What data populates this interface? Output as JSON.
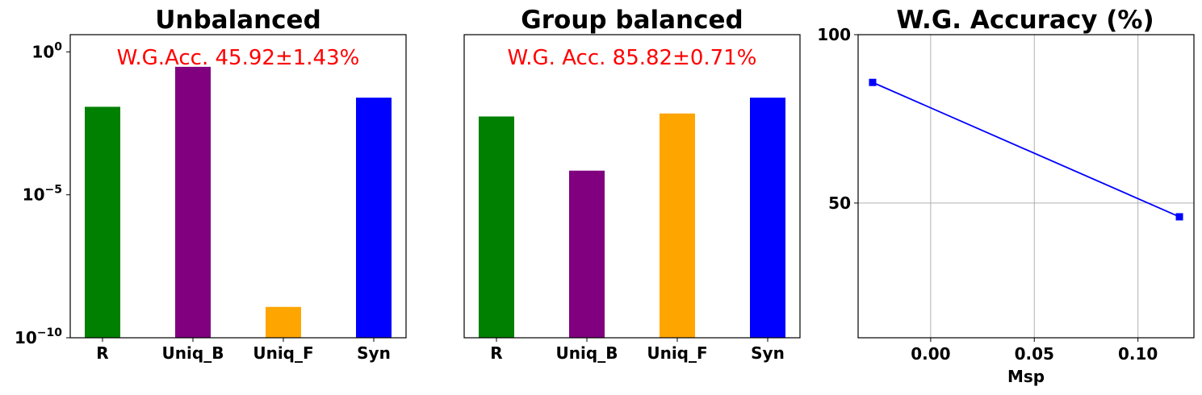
{
  "chart_data": [
    {
      "type": "bar",
      "title": "Unbalanced",
      "annotation": "W.G.Acc. 45.92±1.43%",
      "annotation_color": "#ff0000",
      "categories": [
        "R",
        "Uniq_B",
        "Uniq_F",
        "Syn"
      ],
      "values": [
        0.012,
        0.3,
        1.2e-09,
        0.025
      ],
      "colors": [
        "#008000",
        "#800080",
        "#ffa500",
        "#0000ff"
      ],
      "yscale": "log",
      "ylim": [
        1e-10,
        4
      ],
      "yticks": [
        {
          "value": 1,
          "base": "10",
          "exp": "0"
        },
        {
          "value": 1e-05,
          "base": "10",
          "exp": "−5"
        },
        {
          "value": 1e-10,
          "base": "10",
          "exp": "−10"
        }
      ]
    },
    {
      "type": "bar",
      "title": "Group balanced",
      "annotation": "W.G. Acc. 85.82±0.71%",
      "annotation_color": "#ff0000",
      "categories": [
        "R",
        "Uniq_B",
        "Uniq_F",
        "Syn"
      ],
      "values": [
        0.0055,
        7e-05,
        0.007,
        0.025
      ],
      "colors": [
        "#008000",
        "#800080",
        "#ffa500",
        "#0000ff"
      ],
      "yscale": "log",
      "ylim": [
        1e-10,
        4
      ],
      "yticks": []
    },
    {
      "type": "line",
      "title": "W.G. Accuracy (%)",
      "xlabel": "Msp",
      "x": [
        -0.028,
        0.12
      ],
      "y": [
        85.82,
        45.92
      ],
      "color": "#0000ff",
      "marker": "square",
      "xlim": [
        -0.035,
        0.127
      ],
      "ylim": [
        10,
        100
      ],
      "xticks": [
        "0.00",
        "0.05",
        "0.10"
      ],
      "xtick_values": [
        0,
        0.05,
        0.1
      ],
      "yticks": [
        "50",
        "100"
      ],
      "ytick_values": [
        50,
        100
      ],
      "grid": true
    }
  ]
}
